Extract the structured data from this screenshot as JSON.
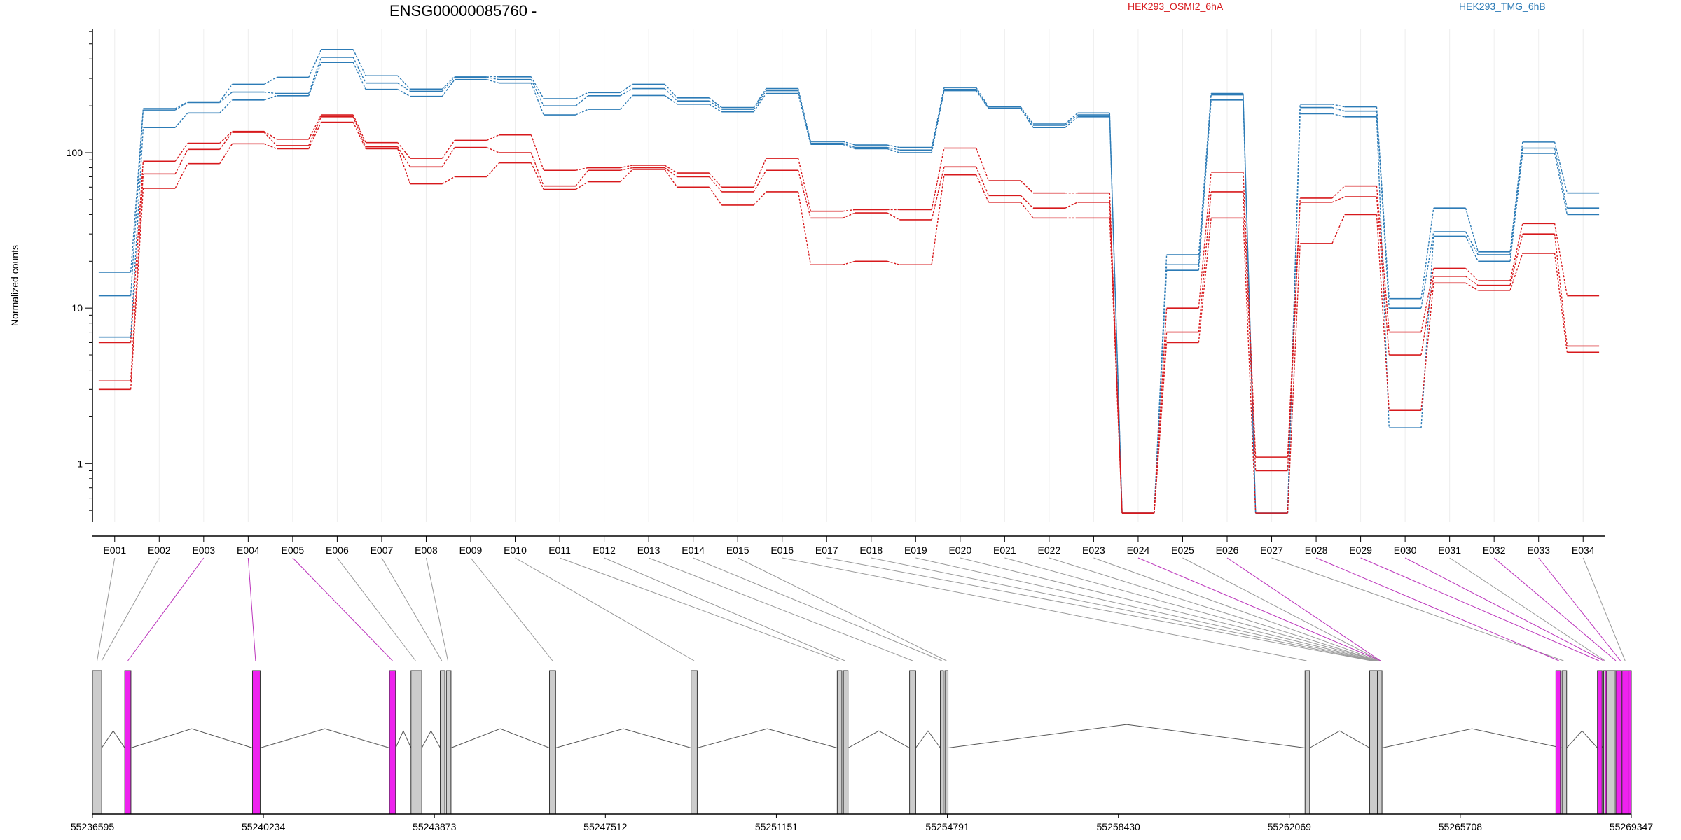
{
  "chart_data": {
    "type": "line",
    "title": "ENSG00000085760 -",
    "ylabel": "Normalized counts",
    "xlabel": "",
    "yscale": "log",
    "ylim": [
      0.42,
      620
    ],
    "yticks": [
      1,
      10,
      100
    ],
    "ytick_labels": [
      "1",
      "10",
      "100"
    ],
    "grid": "vertical-light",
    "legend_placement": "top-right",
    "colors": {
      "OSMI2": "#d7191c",
      "TMG": "#2c7bb6",
      "intron": "#555555",
      "exon": "#cccccc",
      "exon_highlight": "#ee22ee",
      "link_grey": "#999999",
      "link_magenta": "#bb33bb"
    },
    "legend": [
      {
        "label": "HEK293_OSMI2_6hA",
        "color": "#d7191c"
      },
      {
        "label": "HEK293_TMG_6hB",
        "color": "#2c7bb6"
      }
    ],
    "categories": [
      "E001",
      "E002",
      "E003",
      "E004",
      "E005",
      "E006",
      "E007",
      "E008",
      "E009",
      "E010",
      "E011",
      "E012",
      "E013",
      "E014",
      "E015",
      "E016",
      "E017",
      "E018",
      "E019",
      "E020",
      "E021",
      "E022",
      "E023",
      "E024",
      "E025",
      "E026",
      "E027",
      "E028",
      "E029",
      "E030",
      "E031",
      "E032",
      "E033",
      "E034"
    ],
    "series": [
      {
        "group": "TMG",
        "values": [
          17,
          192,
          212,
          275,
          305,
          460,
          312,
          256,
          310,
          307,
          222,
          243,
          275,
          225,
          195,
          258,
          118,
          112,
          108,
          262,
          197,
          153,
          180,
          0.48,
          22,
          240,
          0.48,
          205,
          197,
          11.5,
          44,
          23,
          117,
          55
        ]
      },
      {
        "group": "TMG",
        "values": [
          12,
          188,
          210,
          245,
          240,
          410,
          280,
          248,
          305,
          295,
          200,
          232,
          258,
          215,
          190,
          250,
          115,
          108,
          104,
          255,
          193,
          150,
          175,
          0.48,
          19,
          235,
          0.48,
          195,
          185,
          10,
          31,
          22,
          107,
          44
        ]
      },
      {
        "group": "TMG",
        "values": [
          6.5,
          145,
          180,
          218,
          232,
          380,
          255,
          230,
          295,
          280,
          175,
          190,
          233,
          205,
          183,
          240,
          113,
          106,
          100,
          250,
          192,
          145,
          170,
          0.48,
          17.5,
          218,
          0.48,
          178,
          170,
          1.7,
          29,
          20,
          99,
          40
        ]
      },
      {
        "group": "OSMI2",
        "values": [
          6,
          88,
          115,
          137,
          122,
          175,
          116,
          92,
          120,
          130,
          77,
          80,
          83,
          74,
          60,
          92,
          42,
          43,
          43,
          107,
          66,
          55,
          55,
          0.48,
          10,
          75,
          1.1,
          51,
          61,
          7,
          18,
          15,
          35,
          12
        ]
      },
      {
        "group": "OSMI2",
        "values": [
          3.4,
          73,
          105,
          135,
          111,
          170,
          109,
          81,
          108,
          100,
          61,
          77,
          80,
          70,
          56,
          77,
          38,
          41,
          37,
          81,
          53,
          44,
          48,
          0.48,
          7,
          56,
          0.9,
          48,
          52,
          5,
          16,
          14,
          30,
          5.7
        ]
      },
      {
        "group": "OSMI2",
        "values": [
          3,
          59,
          85,
          114,
          106,
          157,
          106,
          63,
          70,
          86,
          58,
          65,
          78,
          60,
          46,
          56,
          19,
          20,
          19,
          72,
          48,
          38,
          38,
          0.48,
          6,
          38,
          0.48,
          26,
          40,
          2.2,
          14.5,
          13,
          22.5,
          5.2
        ]
      }
    ],
    "gene_model": {
      "genomic_ticks": [
        "55236595",
        "55240234",
        "55243873",
        "55247512",
        "55251151",
        "55254791",
        "55258430",
        "55262069",
        "55265708",
        "55269347"
      ],
      "exon_boxes": [
        [
          0,
          0.006,
          0
        ],
        [
          0.021,
          0.025,
          1
        ],
        [
          0.104,
          0.109,
          1
        ],
        [
          0.193,
          0.197,
          1
        ],
        [
          0.207,
          0.214,
          0
        ],
        [
          0.226,
          0.229,
          0
        ],
        [
          0.23,
          0.233,
          0
        ],
        [
          0.297,
          0.301,
          0
        ],
        [
          0.389,
          0.393,
          0
        ],
        [
          0.484,
          0.487,
          0
        ],
        [
          0.488,
          0.491,
          0
        ],
        [
          0.531,
          0.535,
          0
        ],
        [
          0.551,
          0.553,
          0
        ],
        [
          0.554,
          0.556,
          0
        ],
        [
          0.788,
          0.791,
          0
        ],
        [
          0.83,
          0.835,
          0
        ],
        [
          0.835,
          0.838,
          0
        ],
        [
          0.955,
          0.958,
          0
        ],
        [
          0.951,
          0.954,
          1
        ],
        [
          0.991,
          0.996,
          0
        ],
        [
          0.978,
          0.981,
          1
        ],
        [
          0.982,
          0.989,
          0
        ],
        [
          0.989,
          0.99,
          0
        ],
        [
          0.983,
          0.984,
          1
        ],
        [
          0.99,
          0.994,
          1
        ],
        [
          0.994,
          0.998,
          1
        ],
        [
          0.998,
          1.0,
          1
        ]
      ],
      "introns": [
        [
          0.006,
          0.021,
          0.4
        ],
        [
          0.025,
          0.104,
          0.45
        ],
        [
          0.109,
          0.193,
          0.45
        ],
        [
          0.197,
          0.207,
          0.4
        ],
        [
          0.214,
          0.226,
          0.4
        ],
        [
          0.233,
          0.297,
          0.45
        ],
        [
          0.301,
          0.389,
          0.45
        ],
        [
          0.393,
          0.484,
          0.45
        ],
        [
          0.491,
          0.531,
          0.4
        ],
        [
          0.535,
          0.551,
          0.4
        ],
        [
          0.556,
          0.788,
          0.55
        ],
        [
          0.791,
          0.83,
          0.4
        ],
        [
          0.838,
          0.955,
          0.45
        ],
        [
          0.958,
          0.978,
          0.4
        ],
        [
          0.981,
          0.991,
          0.4
        ]
      ],
      "links": [
        [
          0.003,
          0
        ],
        [
          0.006,
          0
        ],
        [
          0.023,
          1
        ],
        [
          0.106,
          1
        ],
        [
          0.195,
          1
        ],
        [
          0.21,
          0
        ],
        [
          0.227,
          0
        ],
        [
          0.231,
          0
        ],
        [
          0.299,
          0
        ],
        [
          0.391,
          0
        ],
        [
          0.485,
          0
        ],
        [
          0.489,
          0
        ],
        [
          0.533,
          0
        ],
        [
          0.552,
          0
        ],
        [
          0.555,
          0
        ],
        [
          0.789,
          0
        ],
        [
          0.831,
          0
        ],
        [
          0.832,
          0
        ],
        [
          0.833,
          0
        ],
        [
          0.834,
          0
        ],
        [
          0.835,
          0
        ],
        [
          0.835,
          0
        ],
        [
          0.836,
          0
        ],
        [
          0.837,
          1
        ],
        [
          0.837,
          0
        ],
        [
          0.837,
          1
        ],
        [
          0.956,
          0
        ],
        [
          0.953,
          1
        ],
        [
          0.979,
          1
        ],
        [
          0.982,
          1
        ],
        [
          0.983,
          0
        ],
        [
          0.99,
          1
        ],
        [
          0.993,
          1
        ],
        [
          0.996,
          0
        ]
      ]
    }
  }
}
